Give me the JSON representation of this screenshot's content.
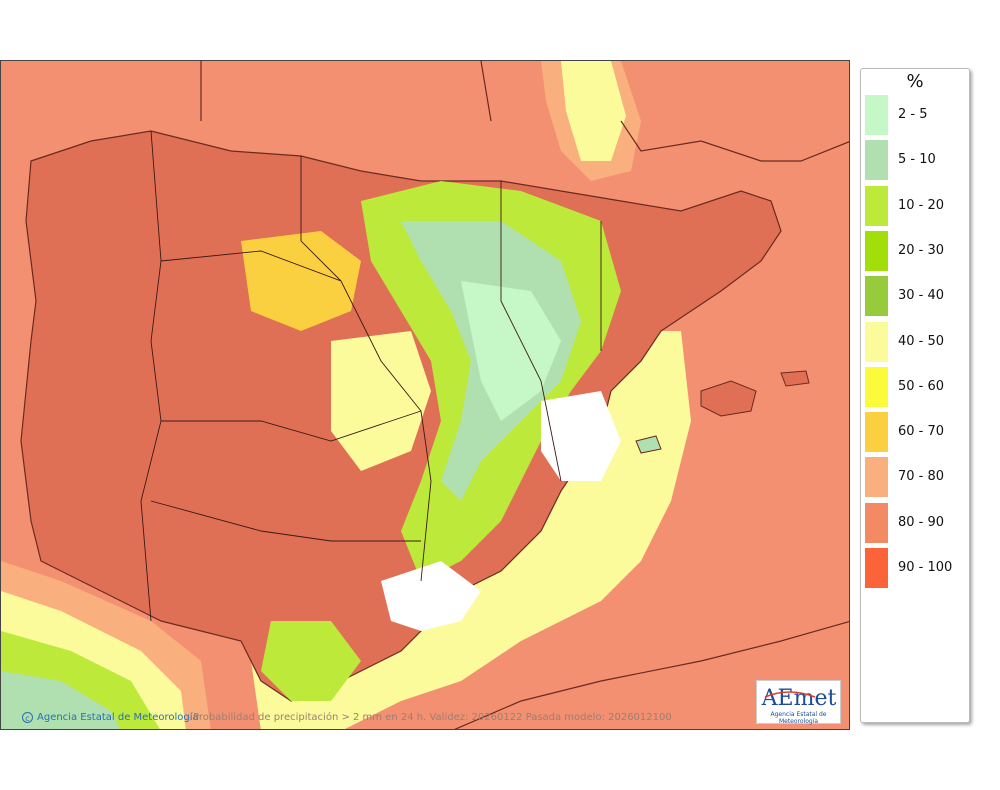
{
  "map": {
    "region": "Iberian Peninsula and Balearic Islands",
    "basemap_ocean_color": "#f39072",
    "credit": "Agencia Estatal de Meteorología",
    "caption": "Probabilidad de precipitación > 2 mm en 24 h. Validez: 20260122 Pasada modelo: 2026012100"
  },
  "logo": {
    "text": "AEmet",
    "subtitle": "Agencia Estatal de Meteorología"
  },
  "legend": {
    "title": "%",
    "items": [
      {
        "label": "2 - 5",
        "color": "#c6f7c6"
      },
      {
        "label": "5 - 10",
        "color": "#b0e0b0"
      },
      {
        "label": "10 - 20",
        "color": "#bde93a"
      },
      {
        "label": "20 - 30",
        "color": "#a2df0a"
      },
      {
        "label": "30 - 40",
        "color": "#96cc3c"
      },
      {
        "label": "40 - 50",
        "color": "#fbfb9c"
      },
      {
        "label": "50 - 60",
        "color": "#fbfb3c"
      },
      {
        "label": "60 - 70",
        "color": "#fbd040"
      },
      {
        "label": "70 - 80",
        "color": "#f9b07e"
      },
      {
        "label": "80 - 90",
        "color": "#f48a64"
      },
      {
        "label": "90 - 100",
        "color": "#fc6338"
      }
    ]
  }
}
